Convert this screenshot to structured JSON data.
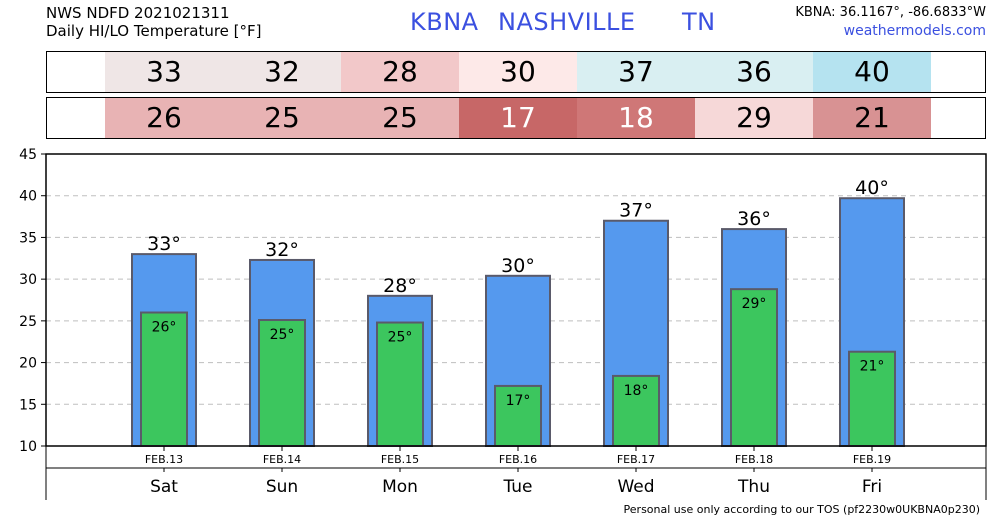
{
  "header": {
    "line1": "NWS NDFD 2021021311",
    "line2": "Daily HI/LO Temperature [°F]",
    "station_code": "KBNA",
    "station_city": "NASHVILLE",
    "station_state": "TN",
    "coords": "KBNA: 36.1167°, -86.6833°W",
    "site": "weathermodels.com"
  },
  "strips": {
    "hi": [
      {
        "value": "33",
        "color": "#efe6e6"
      },
      {
        "value": "32",
        "color": "#efe6e6"
      },
      {
        "value": "28",
        "color": "#f2c8c9"
      },
      {
        "value": "30",
        "color": "#fde9e8"
      },
      {
        "value": "37",
        "color": "#d9eff2"
      },
      {
        "value": "36",
        "color": "#d9eff2"
      },
      {
        "value": "40",
        "color": "#b5e3f0"
      }
    ],
    "lo": [
      {
        "value": "26",
        "color": "#e8b3b4",
        "text_color": "#000000"
      },
      {
        "value": "25",
        "color": "#e8b3b4",
        "text_color": "#000000"
      },
      {
        "value": "25",
        "color": "#e8b3b4",
        "text_color": "#000000"
      },
      {
        "value": "17",
        "color": "#c76767",
        "text_color": "#ffffff"
      },
      {
        "value": "18",
        "color": "#cf7777",
        "text_color": "#ffffff"
      },
      {
        "value": "29",
        "color": "#f6d8d8",
        "text_color": "#000000"
      },
      {
        "value": "21",
        "color": "#d89293",
        "text_color": "#000000"
      }
    ]
  },
  "chart_data": {
    "type": "bar",
    "categories": [
      "FEB.13",
      "FEB.14",
      "FEB.15",
      "FEB.16",
      "FEB.17",
      "FEB.18",
      "FEB.19"
    ],
    "days": [
      "Sat",
      "Sun",
      "Mon",
      "Tue",
      "Wed",
      "Thu",
      "Fri"
    ],
    "series": [
      {
        "values": [
          33,
          32.3,
          28,
          30.4,
          37,
          36,
          39.7
        ],
        "labels": [
          "33°",
          "32°",
          "28°",
          "30°",
          "37°",
          "36°",
          "40°"
        ],
        "color": "#5599ee"
      },
      {
        "values": [
          26,
          25.1,
          24.8,
          17.2,
          18.4,
          28.8,
          21.3
        ],
        "labels": [
          "26°",
          "25°",
          "25°",
          "17°",
          "18°",
          "29°",
          "21°"
        ],
        "color": "#3cc65e"
      }
    ],
    "ylim": [
      10,
      45
    ],
    "yticks": [
      10,
      15,
      20,
      25,
      30,
      35,
      40,
      45
    ],
    "grid": true
  },
  "footer": "Personal use only according to our TOS (pf2230w0UKBNA0p230)"
}
